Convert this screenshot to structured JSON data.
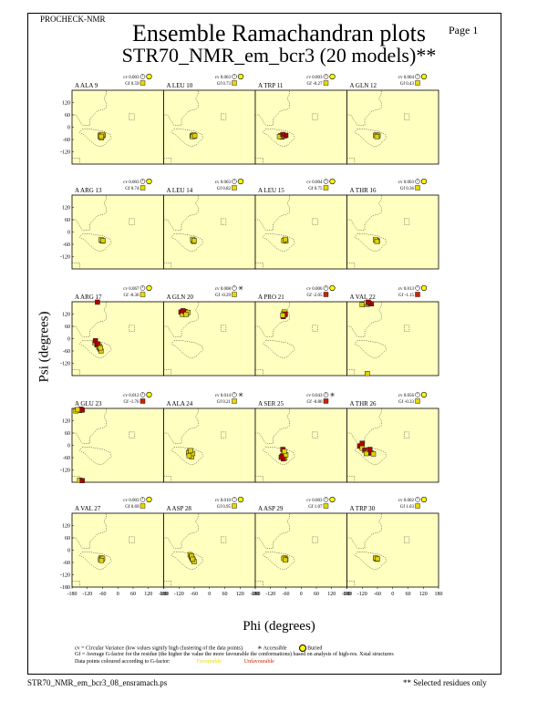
{
  "header": {
    "program": "PROCHECK-NMR",
    "title_line1": "Ensemble Ramachandran plots",
    "title_line2": "STR70_NMR_em_bcr3 (20 models)**",
    "page": "Page  1"
  },
  "footer": {
    "filename": "STR70_NMR_em_bcr3_08_ensramach.ps",
    "note": "** Selected residues only"
  },
  "legend": {
    "cv_text": "cv = Circular Variance (low values signify high clustering of the data points).",
    "accessible": "Accessible",
    "buried": "Buried",
    "gf_text": "Gf = Average G-factor for the residue (the higher the value the more favourable the conformations) based on analysis of high-res. Xstal structures",
    "colour_text": "Data points coloured according to G-factor:",
    "favourable": "Favourable",
    "unfavourable": "Unfavourable"
  },
  "colors": {
    "panel_bg": "#ffffc0",
    "point_fill": "#e0d000",
    "point_dark": "#b00000",
    "favourable": "#e8d800",
    "unfavourable": "#d02000"
  },
  "chart_data": {
    "type": "scatter",
    "xlabel": "Phi (degrees)",
    "ylabel": "Psi (degrees)",
    "xlim": [
      -180,
      180
    ],
    "ylim": [
      -180,
      180
    ],
    "x_ticks": [
      "-180",
      "-120",
      "-60",
      "0",
      "60",
      "120",
      "180"
    ],
    "y_ticks": [
      "120",
      "60",
      "0",
      "-60",
      "-120"
    ],
    "y_ticks_bottom": [
      "120",
      "60",
      "0",
      "-60",
      "-120",
      "-180"
    ],
    "panels": [
      {
        "label": "A ALA 9",
        "cv": "cv 0.003",
        "gf": "Gf 0.59",
        "access": "buried",
        "points": [
          [
            -68,
            -38
          ],
          [
            -62,
            -42
          ],
          [
            -66,
            -48
          ],
          [
            -58,
            -40
          ],
          [
            -64,
            -52
          ],
          [
            -70,
            -44
          ],
          [
            -60,
            -36
          ],
          [
            -65,
            -45
          ]
        ]
      },
      {
        "label": "A LEU 10",
        "cv": "cv 0.003",
        "gf": "Gf 0.73",
        "access": "buried",
        "points": [
          [
            -64,
            -40
          ],
          [
            -60,
            -44
          ],
          [
            -68,
            -42
          ],
          [
            -62,
            -38
          ],
          [
            -66,
            -46
          ],
          [
            -58,
            -42
          ]
        ]
      },
      {
        "label": "A TRP 11",
        "cv": "cv 0.003",
        "gf": "Gf -0.27",
        "access": "buried",
        "points": [
          [
            -80,
            -42
          ],
          [
            -70,
            -40
          ],
          [
            -75,
            -48
          ],
          [
            -66,
            -44
          ],
          [
            -60,
            -40
          ],
          [
            -85,
            -46
          ],
          [
            -72,
            -36
          ]
        ]
      },
      {
        "label": "A GLN 12",
        "cv": "cv 0.004",
        "gf": "Gf 0.43",
        "access": "buried",
        "points": [
          [
            -64,
            -38
          ],
          [
            -60,
            -44
          ],
          [
            -68,
            -40
          ],
          [
            -58,
            -40
          ],
          [
            -62,
            -46
          ]
        ]
      },
      {
        "label": "A ARG 13",
        "cv": "cv 0.003",
        "gf": "Gf 0.74",
        "access": "buried",
        "points": [
          [
            -64,
            -40
          ],
          [
            -60,
            -44
          ],
          [
            -66,
            -38
          ],
          [
            -58,
            -42
          ]
        ]
      },
      {
        "label": "A LEU 14",
        "cv": "cv 0.003",
        "gf": "Gf 0.82",
        "access": "buried",
        "points": [
          [
            -64,
            -40
          ],
          [
            -62,
            -46
          ],
          [
            -66,
            -36
          ],
          [
            -60,
            -42
          ]
        ]
      },
      {
        "label": "A LEU 15",
        "cv": "cv 0.004",
        "gf": "Gf 0.75",
        "access": "buried",
        "points": [
          [
            -64,
            -40
          ],
          [
            -60,
            -44
          ],
          [
            -68,
            -42
          ],
          [
            -62,
            -36
          ]
        ]
      },
      {
        "label": "A THR 16",
        "cv": "cv 0.003",
        "gf": "Gf 0.36",
        "access": "buried",
        "points": [
          [
            -64,
            -40
          ],
          [
            -60,
            -44
          ],
          [
            -68,
            -38
          ],
          [
            -62,
            -46
          ]
        ]
      },
      {
        "label": "A ARG 17",
        "cv": "cv 0.067",
        "gf": "Gf -0.36",
        "access": "buried",
        "points": [
          [
            -80,
            178
          ],
          [
            -90,
            -20
          ],
          [
            -82,
            -30
          ],
          [
            -75,
            -42
          ],
          [
            -70,
            -50
          ],
          [
            -66,
            -60
          ],
          [
            -88,
            -10
          ],
          [
            -72,
            -36
          ],
          [
            -78,
            -26
          ],
          [
            -68,
            -45
          ]
        ]
      },
      {
        "label": "A GLN 20",
        "cv": "cv 0.008",
        "gf": "Gf -0.29",
        "access": "accessible",
        "points": [
          [
            -112,
            130
          ],
          [
            -100,
            126
          ],
          [
            -90,
            124
          ],
          [
            -106,
            118
          ],
          [
            -96,
            132
          ],
          [
            -84,
            128
          ],
          [
            -104,
            136
          ],
          [
            -92,
            118
          ]
        ]
      },
      {
        "label": "A PRO 21",
        "cv": "cv 0.006",
        "gf": "Gf -2.05",
        "access": "buried",
        "points": [
          [
            -68,
            124
          ],
          [
            -64,
            116
          ],
          [
            -70,
            108
          ],
          [
            -66,
            130
          ],
          [
            -62,
            120
          ],
          [
            -72,
            114
          ]
        ]
      },
      {
        "label": "A VAL 22",
        "cv": "cv 0.013",
        "gf": "Gf -1.15",
        "access": "buried",
        "points": [
          [
            -110,
            170
          ],
          [
            -100,
            168
          ],
          [
            -92,
            172
          ],
          [
            -120,
            166
          ],
          [
            -84,
            170
          ],
          [
            -104,
            174
          ],
          [
            -96,
            178
          ],
          [
            -100,
            -170
          ]
        ]
      },
      {
        "label": "A GLU 23",
        "cv": "cv 0.012",
        "gf": "Gf -1.76",
        "access": "buried",
        "points": [
          [
            -160,
            172
          ],
          [
            -150,
            170
          ],
          [
            -145,
            176
          ],
          [
            -165,
            168
          ],
          [
            -140,
            172
          ],
          [
            -150,
            -170
          ],
          [
            -140,
            -172
          ],
          [
            -158,
            174
          ]
        ]
      },
      {
        "label": "A ALA 24",
        "cv": "cv 0.014",
        "gf": "Gf 0.21",
        "access": "accessible",
        "points": [
          [
            -78,
            -30
          ],
          [
            -72,
            -44
          ],
          [
            -82,
            -36
          ],
          [
            -70,
            -56
          ],
          [
            -66,
            -40
          ],
          [
            -74,
            -26
          ],
          [
            -80,
            -50
          ]
        ]
      },
      {
        "label": "A SER 25",
        "cv": "cv 0.043",
        "gf": "Gf -0.80",
        "access": "accessible",
        "points": [
          [
            -72,
            -20
          ],
          [
            -68,
            -40
          ],
          [
            -74,
            -52
          ],
          [
            -64,
            -62
          ],
          [
            -70,
            -66
          ],
          [
            -60,
            -46
          ],
          [
            -78,
            -58
          ],
          [
            -66,
            -30
          ]
        ]
      },
      {
        "label": "A THR 26",
        "cv": "cv 0.056",
        "gf": "Gf -0.33",
        "access": "buried",
        "points": [
          [
            -130,
            -4
          ],
          [
            -120,
            -14
          ],
          [
            -110,
            -24
          ],
          [
            -96,
            -32
          ],
          [
            -84,
            -38
          ],
          [
            -76,
            -42
          ],
          [
            -120,
            10
          ],
          [
            -104,
            -40
          ],
          [
            -90,
            -20
          ]
        ]
      },
      {
        "label": "A VAL 27",
        "cv": "cv 0.003",
        "gf": "Gf 0.69",
        "access": "buried",
        "points": [
          [
            -66,
            -38
          ],
          [
            -62,
            -44
          ],
          [
            -68,
            -46
          ],
          [
            -60,
            -40
          ],
          [
            -64,
            -50
          ]
        ]
      },
      {
        "label": "A ASP 28",
        "cv": "cv 0.010",
        "gf": "Gf 0.95",
        "access": "buried",
        "points": [
          [
            -76,
            -22
          ],
          [
            -72,
            -32
          ],
          [
            -68,
            -40
          ],
          [
            -64,
            -48
          ],
          [
            -60,
            -56
          ],
          [
            -70,
            -28
          ],
          [
            -66,
            -44
          ]
        ]
      },
      {
        "label": "A ASP 29",
        "cv": "cv 0.003",
        "gf": "Gf 1.07",
        "access": "buried",
        "points": [
          [
            -64,
            -38
          ],
          [
            -60,
            -44
          ],
          [
            -68,
            -40
          ],
          [
            -62,
            -48
          ]
        ]
      },
      {
        "label": "A TRP 30",
        "cv": "cv 0.002",
        "gf": "Gf 1.03",
        "access": "buried",
        "points": [
          [
            -66,
            -40
          ],
          [
            -62,
            -44
          ],
          [
            -68,
            -38
          ],
          [
            -60,
            -42
          ]
        ]
      }
    ]
  }
}
